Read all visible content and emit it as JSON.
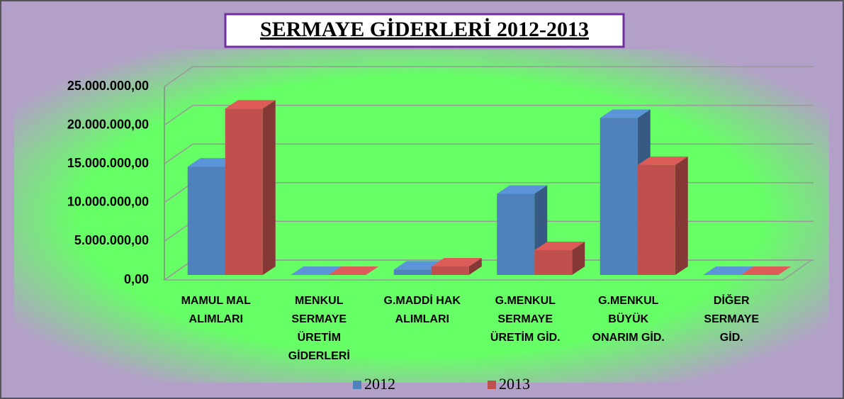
{
  "chart_data": {
    "type": "bar3d",
    "title": "SERMAYE GİDERLERİ 2012-2013",
    "categories": [
      "MAMUL MAL ALIMLARI",
      "MENKUL SERMAYE ÜRETİM GİDERLERİ",
      "G.MADDİ HAK ALIMLARI",
      "G.MENKUL SERMAYE ÜRETİM GİD.",
      "G.MENKUL BÜYÜK ONARIM GİD.",
      "DİĞER SERMAYE GİD."
    ],
    "series": [
      {
        "name": "2012",
        "color": "#4f81bd",
        "values": [
          14000000,
          0,
          700000,
          10500000,
          20300000,
          0
        ]
      },
      {
        "name": "2013",
        "color": "#c0504d",
        "values": [
          21500000,
          0,
          1100000,
          3200000,
          14200000,
          0
        ]
      }
    ],
    "ylim": [
      0,
      25000000
    ],
    "yticks": [
      {
        "value": 0,
        "label": "0,00"
      },
      {
        "value": 5000000,
        "label": "5.000.000,00"
      },
      {
        "value": 10000000,
        "label": "10.000.000,00"
      },
      {
        "value": 15000000,
        "label": "15.000.000,00"
      },
      {
        "value": 20000000,
        "label": "20.000.000,00"
      },
      {
        "value": 25000000,
        "label": "25.000.000,00"
      }
    ],
    "grid": true,
    "legend": "bottom"
  }
}
